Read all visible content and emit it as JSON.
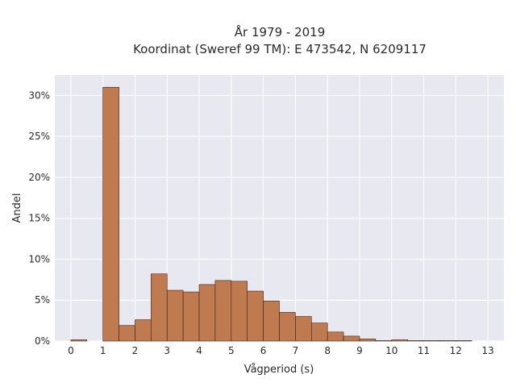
{
  "chart_data": {
    "type": "bar",
    "title_line1": "År 1979 - 2019",
    "title_line2": "Koordinat (Sweref 99 TM): E 473542, N 6209117",
    "xlabel": "Vågperiod (s)",
    "ylabel": "Andel",
    "xlim": [
      -0.5,
      13.5
    ],
    "ylim": [
      0,
      32.5
    ],
    "x_ticks": [
      0,
      1,
      2,
      3,
      4,
      5,
      6,
      7,
      8,
      9,
      10,
      11,
      12,
      13
    ],
    "x_tick_labels": [
      "0",
      "1",
      "2",
      "3",
      "4",
      "5",
      "6",
      "7",
      "8",
      "9",
      "10",
      "11",
      "12",
      "13"
    ],
    "y_ticks": [
      0,
      5,
      10,
      15,
      20,
      25,
      30
    ],
    "y_tick_labels": [
      "0%",
      "5%",
      "10%",
      "15%",
      "20%",
      "25%",
      "30%"
    ],
    "bin_width": 0.5,
    "bins": [
      {
        "start": 0.0,
        "value": 0.15
      },
      {
        "start": 0.5,
        "value": 0.0
      },
      {
        "start": 1.0,
        "value": 31.0
      },
      {
        "start": 1.5,
        "value": 1.9
      },
      {
        "start": 2.0,
        "value": 2.6
      },
      {
        "start": 2.5,
        "value": 8.2
      },
      {
        "start": 3.0,
        "value": 6.2
      },
      {
        "start": 3.5,
        "value": 6.0
      },
      {
        "start": 4.0,
        "value": 6.9
      },
      {
        "start": 4.5,
        "value": 7.4
      },
      {
        "start": 5.0,
        "value": 7.3
      },
      {
        "start": 5.5,
        "value": 6.1
      },
      {
        "start": 6.0,
        "value": 4.9
      },
      {
        "start": 6.5,
        "value": 3.5
      },
      {
        "start": 7.0,
        "value": 3.0
      },
      {
        "start": 7.5,
        "value": 2.2
      },
      {
        "start": 8.0,
        "value": 1.1
      },
      {
        "start": 8.5,
        "value": 0.6
      },
      {
        "start": 9.0,
        "value": 0.25
      },
      {
        "start": 9.5,
        "value": 0.05
      },
      {
        "start": 10.0,
        "value": 0.15
      },
      {
        "start": 10.5,
        "value": 0.05
      },
      {
        "start": 11.0,
        "value": 0.05
      },
      {
        "start": 11.5,
        "value": 0.05
      },
      {
        "start": 12.0,
        "value": 0.05
      }
    ],
    "grid": true,
    "colors": {
      "bar_fill": "#c07a50",
      "bar_stroke": "#3b2418",
      "plot_background": "#e8e8f0",
      "grid": "#ffffff"
    }
  }
}
